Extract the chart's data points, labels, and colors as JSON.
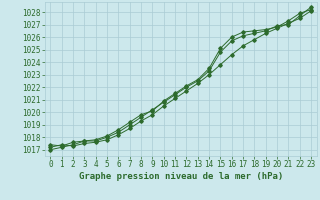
{
  "title": "Graphe pression niveau de la mer (hPa)",
  "background_color": "#cce8ec",
  "grid_color": "#aaccd4",
  "line_color": "#2d6b2d",
  "xlim": [
    -0.5,
    23.5
  ],
  "ylim": [
    1016.5,
    1028.8
  ],
  "yticks": [
    1017,
    1018,
    1019,
    1020,
    1021,
    1022,
    1023,
    1024,
    1025,
    1026,
    1027,
    1028
  ],
  "xticks": [
    0,
    1,
    2,
    3,
    4,
    5,
    6,
    7,
    8,
    9,
    10,
    11,
    12,
    13,
    14,
    15,
    16,
    17,
    18,
    19,
    20,
    21,
    22,
    23
  ],
  "line1_x": [
    0,
    1,
    2,
    3,
    4,
    5,
    6,
    7,
    8,
    9,
    10,
    11,
    12,
    13,
    14,
    15,
    16,
    17,
    18,
    19,
    20,
    21,
    22,
    23
  ],
  "line1_y": [
    1017.2,
    1017.4,
    1017.3,
    1017.5,
    1017.6,
    1017.8,
    1018.2,
    1018.7,
    1019.3,
    1019.8,
    1020.5,
    1021.1,
    1021.7,
    1022.3,
    1023.0,
    1023.8,
    1024.6,
    1025.3,
    1025.8,
    1026.3,
    1026.7,
    1027.1,
    1027.5,
    1028.1
  ],
  "line2_x": [
    0,
    1,
    2,
    3,
    4,
    5,
    6,
    7,
    8,
    9,
    10,
    11,
    12,
    13,
    14,
    15,
    16,
    17,
    18,
    19,
    20,
    21,
    22,
    23
  ],
  "line2_y": [
    1017.0,
    1017.2,
    1017.4,
    1017.7,
    1017.7,
    1018.0,
    1018.4,
    1019.0,
    1019.6,
    1020.2,
    1020.8,
    1021.4,
    1022.0,
    1022.5,
    1023.3,
    1024.8,
    1025.7,
    1026.1,
    1026.3,
    1026.5,
    1026.9,
    1027.0,
    1027.7,
    1028.4
  ],
  "line3_x": [
    0,
    1,
    2,
    3,
    4,
    5,
    6,
    7,
    8,
    9,
    10,
    11,
    12,
    13,
    14,
    15,
    16,
    17,
    18,
    19,
    20,
    21,
    22,
    23
  ],
  "line3_y": [
    1017.4,
    1017.3,
    1017.6,
    1017.7,
    1017.8,
    1018.1,
    1018.6,
    1019.2,
    1019.8,
    1020.1,
    1020.9,
    1021.5,
    1022.1,
    1022.6,
    1023.5,
    1025.1,
    1026.0,
    1026.4,
    1026.5,
    1026.6,
    1026.8,
    1027.3,
    1027.9,
    1028.2
  ],
  "tick_fontsize": 5.5,
  "title_fontsize": 6.5
}
